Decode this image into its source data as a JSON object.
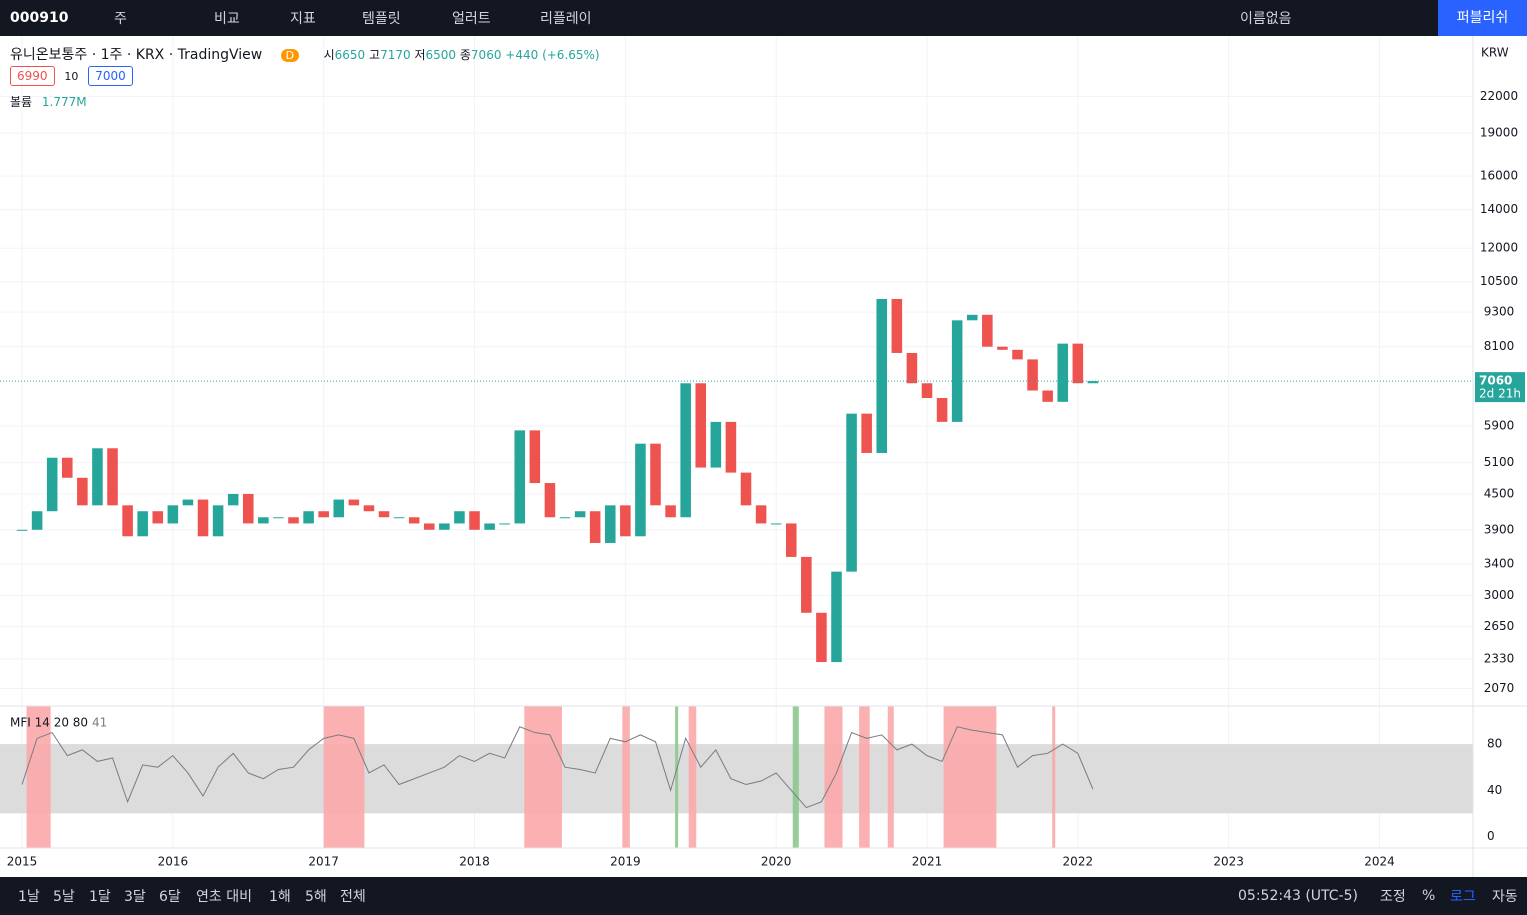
{
  "toolbar": {
    "symbol": "000910",
    "interval": "주",
    "compare": "비교",
    "indicators": "지표",
    "templates": "템플릿",
    "alert": "얼러트",
    "replay": "리플레이",
    "layout": "이름없음",
    "publish": "퍼블리쉬"
  },
  "legend": {
    "title": "유니온보통주 · 1주 · KRX · TradingView",
    "badge": "D",
    "open_label": "시",
    "open": 6650,
    "high_label": "고",
    "high": 7170,
    "low_label": "저",
    "low": 6500,
    "close_label": "종",
    "close": 7060,
    "change": "+440 (+6.65%)",
    "bid": 6990,
    "spread": 10,
    "ask": 7000,
    "volume_label": "볼륨",
    "volume": "1.777M"
  },
  "price_tag": {
    "countdown": "2d 21h"
  },
  "currency": "KRW",
  "chart_data": [
    {
      "type": "candlestick",
      "log_scale": true,
      "grid": true,
      "up_color": "#26a69a",
      "down_color": "#ef5350",
      "x": [
        2015.0,
        2015.1,
        2015.2,
        2015.3,
        2015.4,
        2015.5,
        2015.6,
        2015.7,
        2015.8,
        2015.9,
        2016.0,
        2016.1,
        2016.2,
        2016.3,
        2016.4,
        2016.5,
        2016.6,
        2016.7,
        2016.8,
        2016.9,
        2017.0,
        2017.1,
        2017.2,
        2017.3,
        2017.4,
        2017.5,
        2017.6,
        2017.7,
        2017.8,
        2017.9,
        2018.0,
        2018.1,
        2018.2,
        2018.3,
        2018.4,
        2018.5,
        2018.6,
        2018.7,
        2018.8,
        2018.9,
        2019.0,
        2019.1,
        2019.2,
        2019.3,
        2019.4,
        2019.5,
        2019.6,
        2019.7,
        2019.8,
        2019.9,
        2020.0,
        2020.1,
        2020.2,
        2020.3,
        2020.4,
        2020.5,
        2020.6,
        2020.7,
        2020.8,
        2020.9,
        2021.0,
        2021.1,
        2021.2,
        2021.3,
        2021.4,
        2021.5,
        2021.6,
        2021.7,
        2021.8,
        2021.9,
        2022.0,
        2022.1
      ],
      "values": [
        3900,
        4200,
        5200,
        4800,
        4300,
        5400,
        4300,
        3800,
        4200,
        4000,
        4300,
        4400,
        3800,
        4300,
        4500,
        4000,
        4100,
        4100,
        4000,
        4200,
        4100,
        4400,
        4300,
        4200,
        4100,
        4100,
        4000,
        3900,
        4000,
        4200,
        3900,
        4000,
        4000,
        5800,
        4700,
        4100,
        4100,
        4200,
        3700,
        4300,
        3800,
        5500,
        4300,
        4100,
        7000,
        5000,
        6000,
        4900,
        4300,
        4000,
        4000,
        3500,
        2800,
        2300,
        3300,
        6200,
        5300,
        9800,
        7900,
        7000,
        6600,
        6000,
        9000,
        9200,
        8100,
        8000,
        7700,
        6800,
        6500,
        8200,
        7000,
        7060
      ],
      "xlim": [
        2014.854,
        2024.62
      ],
      "xticks": [
        2015,
        2016,
        2017,
        2018,
        2019,
        2020,
        2021,
        2022,
        2023,
        2024
      ],
      "ylim": [
        1930,
        28000
      ],
      "yticks": [
        2070,
        2330,
        2650,
        3000,
        3400,
        3900,
        4500,
        5100,
        5900,
        8100,
        9300,
        10500,
        12000,
        14000,
        16000,
        19000,
        22000
      ]
    },
    {
      "type": "line",
      "title": "MFI 14 20 80",
      "color": "#787b86",
      "band": [
        20,
        80
      ],
      "band_color": "#dcdcdc",
      "x": [
        2015.0,
        2015.1,
        2015.2,
        2015.3,
        2015.4,
        2015.5,
        2015.6,
        2015.7,
        2015.8,
        2015.9,
        2016.0,
        2016.1,
        2016.2,
        2016.3,
        2016.4,
        2016.5,
        2016.6,
        2016.7,
        2016.8,
        2016.9,
        2017.0,
        2017.1,
        2017.2,
        2017.3,
        2017.4,
        2017.5,
        2017.6,
        2017.7,
        2017.8,
        2017.9,
        2018.0,
        2018.1,
        2018.2,
        2018.3,
        2018.4,
        2018.5,
        2018.6,
        2018.7,
        2018.8,
        2018.9,
        2019.0,
        2019.1,
        2019.2,
        2019.3,
        2019.4,
        2019.5,
        2019.6,
        2019.7,
        2019.8,
        2019.9,
        2020.0,
        2020.1,
        2020.2,
        2020.3,
        2020.4,
        2020.5,
        2020.6,
        2020.7,
        2020.8,
        2020.9,
        2021.0,
        2021.1,
        2021.2,
        2021.3,
        2021.4,
        2021.5,
        2021.6,
        2021.7,
        2021.8,
        2021.9,
        2022.0,
        2022.1
      ],
      "values": [
        45,
        85,
        90,
        70,
        75,
        65,
        68,
        30,
        62,
        60,
        70,
        55,
        35,
        60,
        72,
        55,
        50,
        58,
        60,
        75,
        85,
        88,
        85,
        55,
        62,
        45,
        50,
        55,
        60,
        70,
        65,
        72,
        68,
        95,
        90,
        88,
        60,
        58,
        55,
        85,
        82,
        88,
        82,
        40,
        85,
        60,
        75,
        50,
        45,
        48,
        55,
        40,
        25,
        30,
        55,
        90,
        85,
        88,
        75,
        80,
        70,
        65,
        95,
        92,
        90,
        88,
        60,
        70,
        72,
        80,
        72,
        41
      ],
      "zones": [
        {
          "start": 2015.03,
          "end": 2015.19,
          "color": "#fba9a9"
        },
        {
          "start": 2017.0,
          "end": 2017.27,
          "color": "#fba9a9"
        },
        {
          "start": 2018.33,
          "end": 2018.58,
          "color": "#fba9a9"
        },
        {
          "start": 2018.98,
          "end": 2019.03,
          "color": "#fba9a9"
        },
        {
          "start": 2019.33,
          "end": 2019.35,
          "color": "#8cc98c"
        },
        {
          "start": 2019.42,
          "end": 2019.47,
          "color": "#fba9a9"
        },
        {
          "start": 2020.11,
          "end": 2020.15,
          "color": "#8cc98c"
        },
        {
          "start": 2020.32,
          "end": 2020.44,
          "color": "#fba9a9"
        },
        {
          "start": 2020.55,
          "end": 2020.62,
          "color": "#fba9a9"
        },
        {
          "start": 2020.74,
          "end": 2020.78,
          "color": "#fba9a9"
        },
        {
          "start": 2021.11,
          "end": 2021.46,
          "color": "#fba9a9"
        },
        {
          "start": 2021.83,
          "end": 2021.85,
          "color": "#fba9a9"
        }
      ],
      "xlim": [
        2014.854,
        2024.62
      ],
      "ylim": [
        -10,
        113
      ],
      "yticks": [
        0,
        40,
        80
      ]
    }
  ],
  "bottom_bar": {
    "ranges": [
      "1날",
      "5날",
      "1달",
      "3달",
      "6달",
      "연초 대비",
      "1해",
      "5해",
      "전체"
    ],
    "time": "05:52:43 (UTC-5)",
    "adjust": "조정",
    "percent": "%",
    "log": "로그",
    "auto": "자동"
  }
}
